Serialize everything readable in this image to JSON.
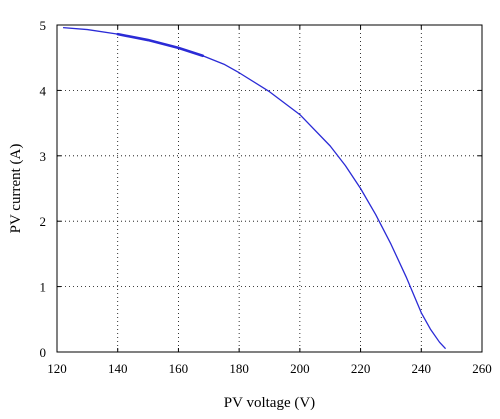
{
  "chart_data": {
    "type": "line",
    "title": "",
    "xlabel": "PV voltage (V)",
    "ylabel": "PV current (A)",
    "xlim": [
      120,
      260
    ],
    "ylim": [
      0,
      5
    ],
    "xticks": [
      "120",
      "140",
      "160",
      "180",
      "200",
      "220",
      "240",
      "260"
    ],
    "yticks": [
      "0",
      "1",
      "2",
      "3",
      "4",
      "5"
    ],
    "grid": true,
    "grid_style": "dotted",
    "legend": "none",
    "colors": {
      "line": "#2b2bd6",
      "axes": "#000000",
      "grid": "#000000"
    },
    "series": [
      {
        "x": [
          122,
          130,
          140,
          150,
          160,
          168,
          175,
          180,
          190,
          200,
          210,
          215,
          220,
          225,
          230,
          235,
          240,
          243,
          246,
          248
        ],
        "y": [
          4.96,
          4.93,
          4.86,
          4.77,
          4.65,
          4.53,
          4.4,
          4.27,
          3.98,
          3.63,
          3.15,
          2.85,
          2.5,
          2.1,
          1.65,
          1.15,
          0.6,
          0.35,
          0.15,
          0.05
        ]
      }
    ]
  }
}
